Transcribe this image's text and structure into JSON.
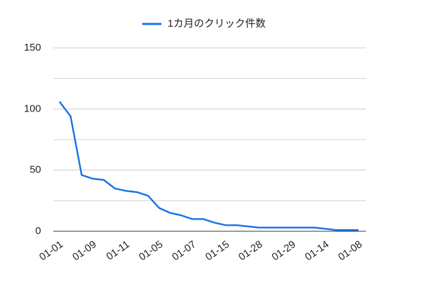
{
  "chart_data": {
    "type": "line",
    "categories": [
      "01-01",
      null,
      null,
      "01-09",
      null,
      null,
      "01-11",
      null,
      null,
      "01-05",
      null,
      null,
      "01-07",
      null,
      null,
      "01-15",
      null,
      null,
      "01-28",
      null,
      null,
      "01-29",
      null,
      null,
      "01-14",
      null,
      null,
      "01-08"
    ],
    "series": [
      {
        "name": "1カ月のクリック件数",
        "color": "#1a73e8",
        "values": [
          106,
          94,
          46,
          43,
          42,
          35,
          33,
          32,
          29,
          19,
          15,
          13,
          10,
          10,
          7,
          5,
          5,
          4,
          3,
          3,
          3,
          3,
          3,
          3,
          2,
          1,
          1,
          1
        ]
      }
    ],
    "ylim": [
      0,
      150
    ],
    "yticks": [
      0,
      50,
      100,
      150
    ],
    "minor_yticks": [
      25,
      75,
      125
    ],
    "grid": true,
    "legend": "top"
  }
}
